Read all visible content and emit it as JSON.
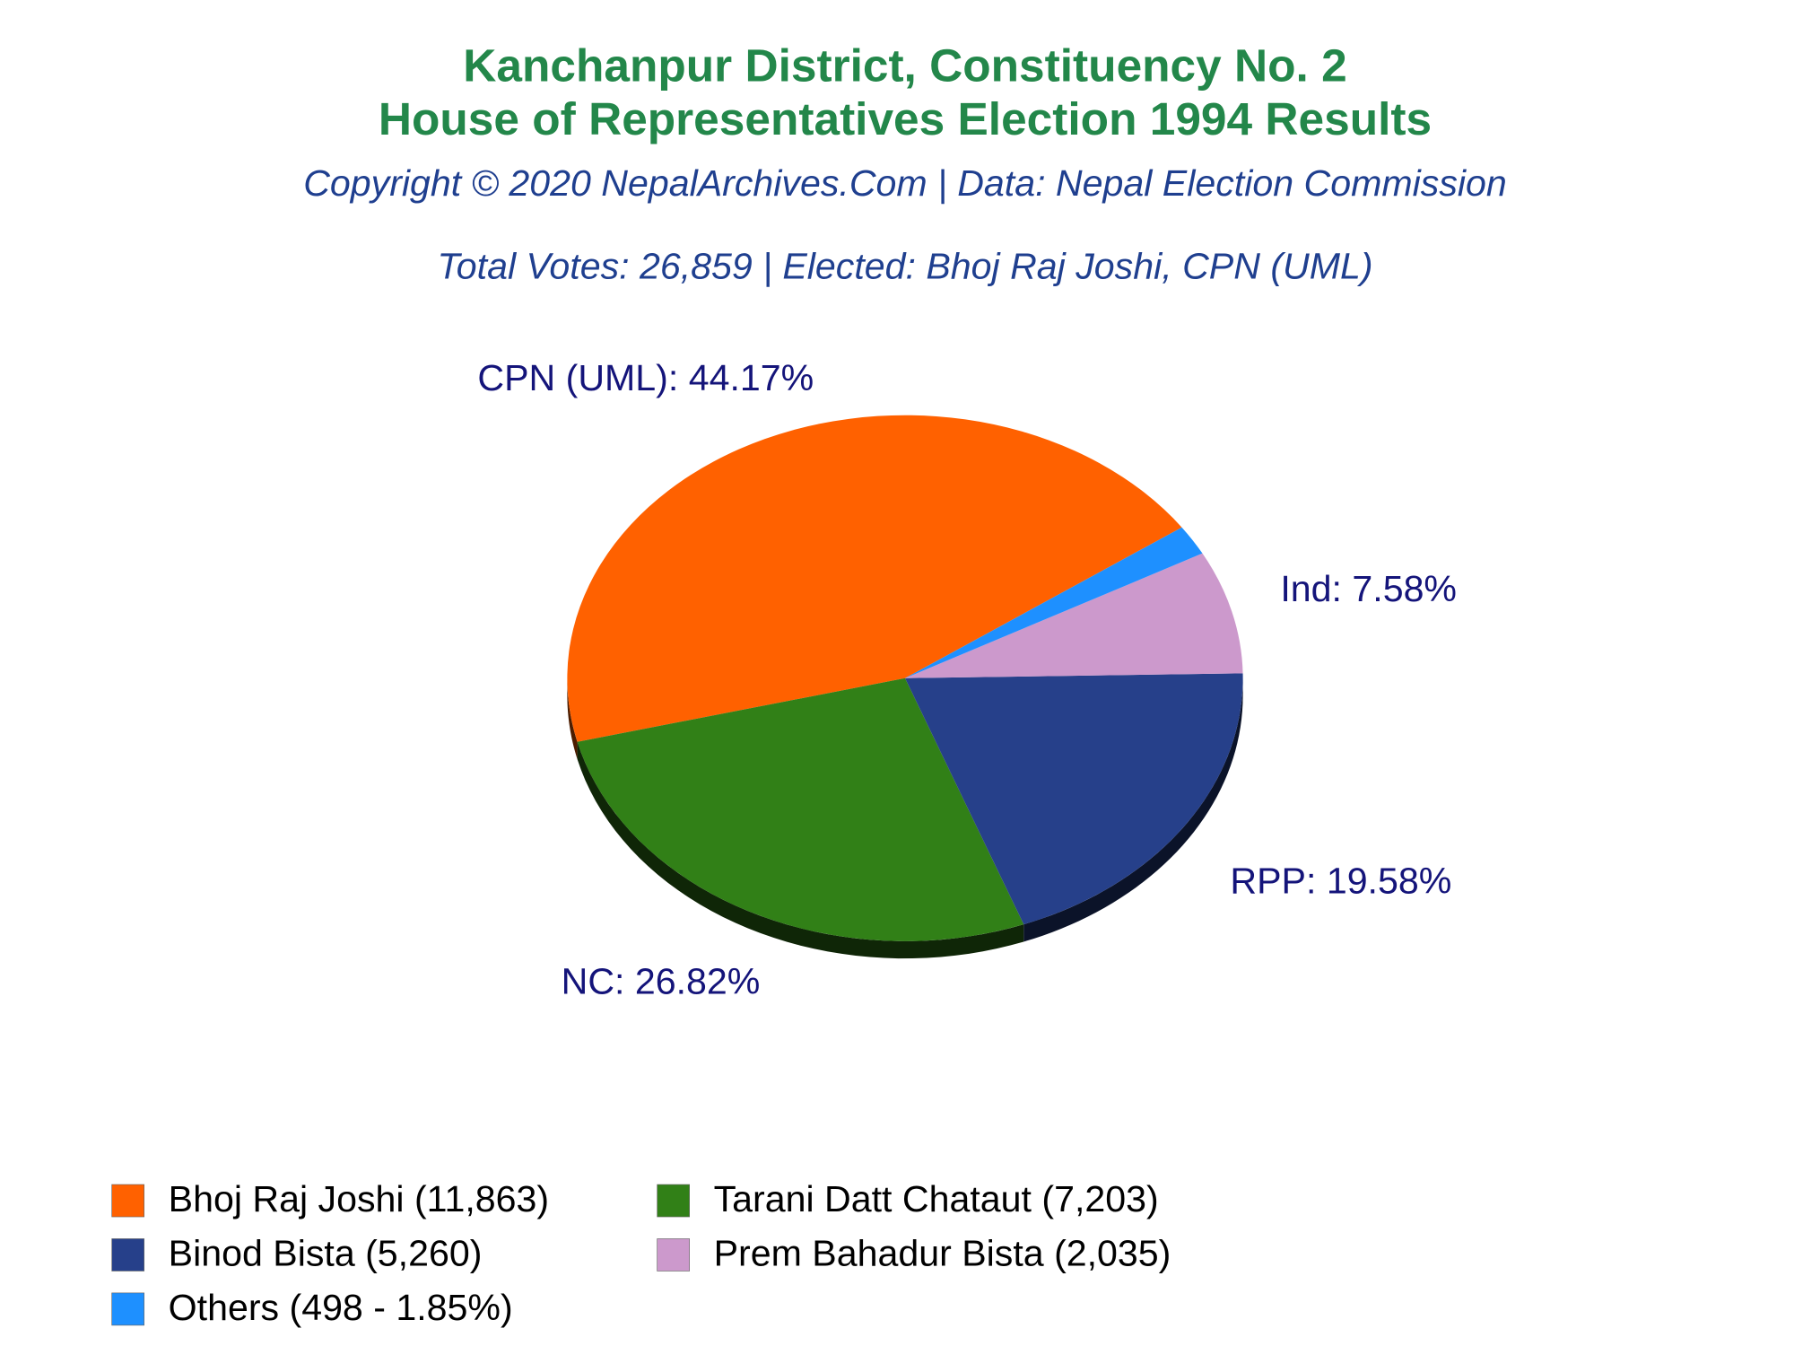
{
  "chart_data": {
    "type": "pie",
    "title": [
      "Kanchanpur District, Constituency No. 2",
      "House of Representatives Election 1994 Results"
    ],
    "subtitle": "Copyright © 2020 NepalArchives.Com | Data: Nepal Election Commission",
    "annotation": "Total Votes: 26,859 | Elected: Bhoj Raj Joshi, CPN (UML)",
    "categories": [
      "Bhoj Raj Joshi (11,863)",
      "Tarani Datt Chataut (7,203)",
      "Binod Bista (5,260)",
      "Prem Bahadur Bista (2,035)",
      "Others (498 - 1.85%)"
    ],
    "values": [
      44.17,
      26.82,
      19.58,
      7.58,
      1.85
    ],
    "value_labels": [
      "CPN (UML): 44.17%",
      "NC: 26.82%",
      "RPP: 19.58%",
      "Ind: 7.58%",
      null
    ],
    "colors": [
      "#ff6100",
      "#318017",
      "#26408a",
      "#cc99cc",
      "#1e90ff"
    ],
    "legend": "bottom-left"
  }
}
